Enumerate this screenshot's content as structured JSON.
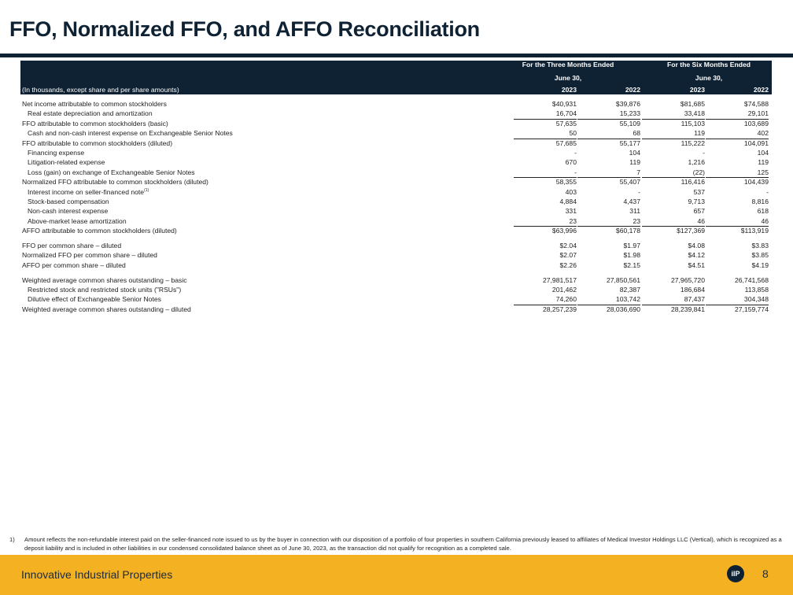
{
  "title": "FFO, Normalized FFO, and AFFO Reconciliation",
  "header": {
    "group1": "For the Three Months Ended",
    "group1_sub": "June 30,",
    "group2": "For the Six Months Ended",
    "group2_sub": "June 30,",
    "row_label": "(In thousands, except share and per share amounts)",
    "years": [
      "2023",
      "2022",
      "2023",
      "2022"
    ]
  },
  "rows": [
    {
      "label": "Net income attributable to common stockholders",
      "values": [
        "$40,931",
        "$39,876",
        "$81,685",
        "$74,588"
      ]
    },
    {
      "label": "Real estate depreciation and amortization",
      "values": [
        "16,704",
        "15,233",
        "33,418",
        "29,101"
      ]
    },
    {
      "label": "FFO attributable to common stockholders (basic)",
      "values": [
        "57,635",
        "55,109",
        "115,103",
        "103,689"
      ]
    },
    {
      "label": "Cash and non-cash interest expense on Exchangeable Senior Notes",
      "values": [
        "50",
        "68",
        "119",
        "402"
      ]
    },
    {
      "label": "FFO attributable to common stockholders (diluted)",
      "values": [
        "57,685",
        "55,177",
        "115,222",
        "104,091"
      ]
    },
    {
      "label": "Financing expense",
      "values": [
        "-",
        "104",
        "-",
        "104"
      ]
    },
    {
      "label": "Litigation-related expense",
      "values": [
        "670",
        "119",
        "1,216",
        "119"
      ]
    },
    {
      "label": "Loss (gain) on exchange of Exchangeable Senior Notes",
      "values": [
        "-",
        "7",
        "(22)",
        "125"
      ]
    },
    {
      "label": "Normalized FFO attributable to common stockholders (diluted)",
      "values": [
        "58,355",
        "55,407",
        "116,416",
        "104,439"
      ]
    },
    {
      "label": "Interest income on seller-financed note",
      "footnote": "(1)",
      "values": [
        "403",
        "-",
        "537",
        "-"
      ]
    },
    {
      "label": "Stock-based compensation",
      "values": [
        "4,884",
        "4,437",
        "9,713",
        "8,816"
      ]
    },
    {
      "label": "Non-cash interest expense",
      "values": [
        "331",
        "311",
        "657",
        "618"
      ]
    },
    {
      "label": "Above-market lease amortization",
      "values": [
        "23",
        "23",
        "46",
        "46"
      ]
    },
    {
      "label": "AFFO attributable to common stockholders (diluted)",
      "values": [
        "$63,996",
        "$60,178",
        "$127,369",
        "$113,919"
      ]
    },
    {
      "label": "FFO per common share – diluted",
      "values": [
        "$2.04",
        "$1.97",
        "$4.08",
        "$3.83"
      ]
    },
    {
      "label": "Normalized FFO per common share – diluted",
      "values": [
        "$2.07",
        "$1.98",
        "$4.12",
        "$3.85"
      ]
    },
    {
      "label": "AFFO per common share – diluted",
      "values": [
        "$2.26",
        "$2.15",
        "$4.51",
        "$4.19"
      ]
    },
    {
      "label": "Weighted average common shares outstanding – basic",
      "values": [
        "27,981,517",
        "27,850,561",
        "27,965,720",
        "26,741,568"
      ]
    },
    {
      "label": "Restricted stock and restricted stock units (\"RSUs\")",
      "values": [
        "201,462",
        "82,387",
        "186,684",
        "113,858"
      ]
    },
    {
      "label": "Dilutive effect of Exchangeable Senior Notes",
      "values": [
        "74,260",
        "103,742",
        "87,437",
        "304,348"
      ]
    },
    {
      "label": "Weighted average common shares outstanding – diluted",
      "values": [
        "28,257,239",
        "28,036,690",
        "28,239,841",
        "27,159,774"
      ]
    }
  ],
  "footnote": {
    "number": "1)",
    "text": "Amount reflects the non-refundable interest paid on the seller-financed note issued to us by the buyer in connection with our disposition of a portfolio of four properties in southern California previously leased to affiliates of Medical Investor Holdings LLC (Vertical), which is recognized as a deposit liability and is included in other liabilities in our condensed consolidated balance sheet as of June 30, 2023, as the transaction did not qualify for recognition as a completed sale."
  },
  "footer": {
    "company": "Innovative Industrial Properties",
    "logo_text": "iIP",
    "page_number": "8"
  },
  "colors": {
    "navy": "#0f2233",
    "gold": "#f4b223"
  }
}
